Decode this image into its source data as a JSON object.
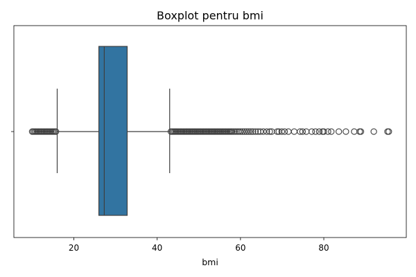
{
  "chart_data": {
    "type": "boxplot",
    "title": "Boxplot pentru bmi",
    "xlabel": "bmi",
    "ylabel": "",
    "xlim": [
      5.6,
      99.8
    ],
    "xticks": [
      20,
      40,
      60,
      80
    ],
    "tick_labels": [
      "20",
      "40",
      "60",
      "80"
    ],
    "y_ticks": [
      ""
    ],
    "grid": false,
    "orientation": "horizontal",
    "box": {
      "whisker_low": 16.0,
      "q1": 26.0,
      "median": 27.3,
      "q3": 32.8,
      "whisker_high": 43.0
    },
    "outliers_low": [
      10.0,
      10.3,
      10.6,
      10.9,
      11.2,
      11.5,
      11.8,
      12.1,
      12.4,
      12.7,
      13.0,
      13.3,
      13.6,
      13.9,
      14.2,
      14.5,
      14.8,
      15.1,
      15.4,
      15.7
    ],
    "outliers_high": [
      43.3,
      43.6,
      43.9,
      44.2,
      44.5,
      44.8,
      45.1,
      45.4,
      45.7,
      46.0,
      46.3,
      46.6,
      46.9,
      47.2,
      47.5,
      47.8,
      48.1,
      48.4,
      48.7,
      49.0,
      49.3,
      49.6,
      49.9,
      50.2,
      50.5,
      50.8,
      51.1,
      51.4,
      51.7,
      52.0,
      52.3,
      52.6,
      52.9,
      53.2,
      53.5,
      53.8,
      54.1,
      54.4,
      54.7,
      55.0,
      55.3,
      55.6,
      55.9,
      56.2,
      56.5,
      56.8,
      57.1,
      57.4,
      57.7,
      58.0,
      58.4,
      58.8,
      59.2,
      59.6,
      60.0,
      60.5,
      61.0,
      61.5,
      62.0,
      62.5,
      63.0,
      63.6,
      64.2,
      64.8,
      65.5,
      66.3,
      67.0,
      67.5,
      68.8,
      69.2,
      69.9,
      70.6,
      71.5,
      72.9,
      74.3,
      74.9,
      75.8,
      77.1,
      78.0,
      78.9,
      79.7,
      80.0,
      81.0,
      81.8,
      83.6,
      85.3,
      87.3,
      88.6,
      88.9,
      92.0,
      95.3,
      95.6
    ],
    "colors": {
      "box": "#3274a1",
      "lines": "#3f3f3f",
      "outlier": "#3f3f3f"
    }
  }
}
